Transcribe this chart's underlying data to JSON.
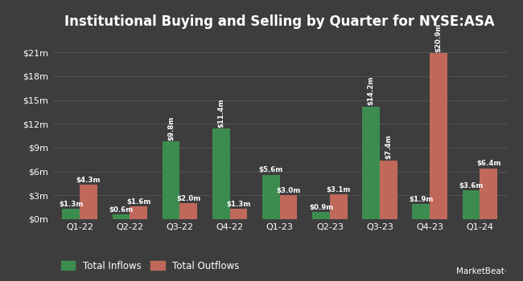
{
  "title": "Institutional Buying and Selling by Quarter for NYSE:ASA",
  "quarters": [
    "Q1-22",
    "Q2-22",
    "Q3-22",
    "Q4-22",
    "Q1-23",
    "Q2-23",
    "Q3-23",
    "Q4-23",
    "Q1-24"
  ],
  "inflows": [
    1.3,
    0.6,
    9.8,
    11.4,
    5.6,
    0.9,
    14.2,
    1.9,
    3.6
  ],
  "outflows": [
    4.3,
    1.6,
    2.0,
    1.3,
    3.0,
    3.1,
    7.4,
    20.9,
    6.4
  ],
  "inflow_labels": [
    "$1.3m",
    "$0.6m",
    "$9.8m",
    "$11.4m",
    "$5.6m",
    "$0.9m",
    "$14.2m",
    "$1.9m",
    "$3.6m"
  ],
  "outflow_labels": [
    "$4.3m",
    "$1.6m",
    "$2.0m",
    "$1.3m",
    "$3.0m",
    "$3.1m",
    "$7.4m",
    "$20.9m",
    "$6.4m"
  ],
  "inflow_color": "#3d8c4f",
  "outflow_color": "#c0685a",
  "bg_color": "#3d3d3d",
  "text_color": "#ffffff",
  "grid_color": "#555555",
  "bar_width": 0.35,
  "ylim": [
    0,
    23
  ],
  "yticks": [
    0,
    3,
    6,
    9,
    12,
    15,
    18,
    21
  ],
  "ytick_labels": [
    "$0m",
    "$3m",
    "$6m",
    "$9m",
    "$12m",
    "$15m",
    "$18m",
    "$21m"
  ],
  "legend_inflow": "Total Inflows",
  "legend_outflow": "Total Outflows",
  "title_fontsize": 12,
  "tick_fontsize": 8,
  "label_fontsize": 6.2,
  "legend_fontsize": 8.5
}
